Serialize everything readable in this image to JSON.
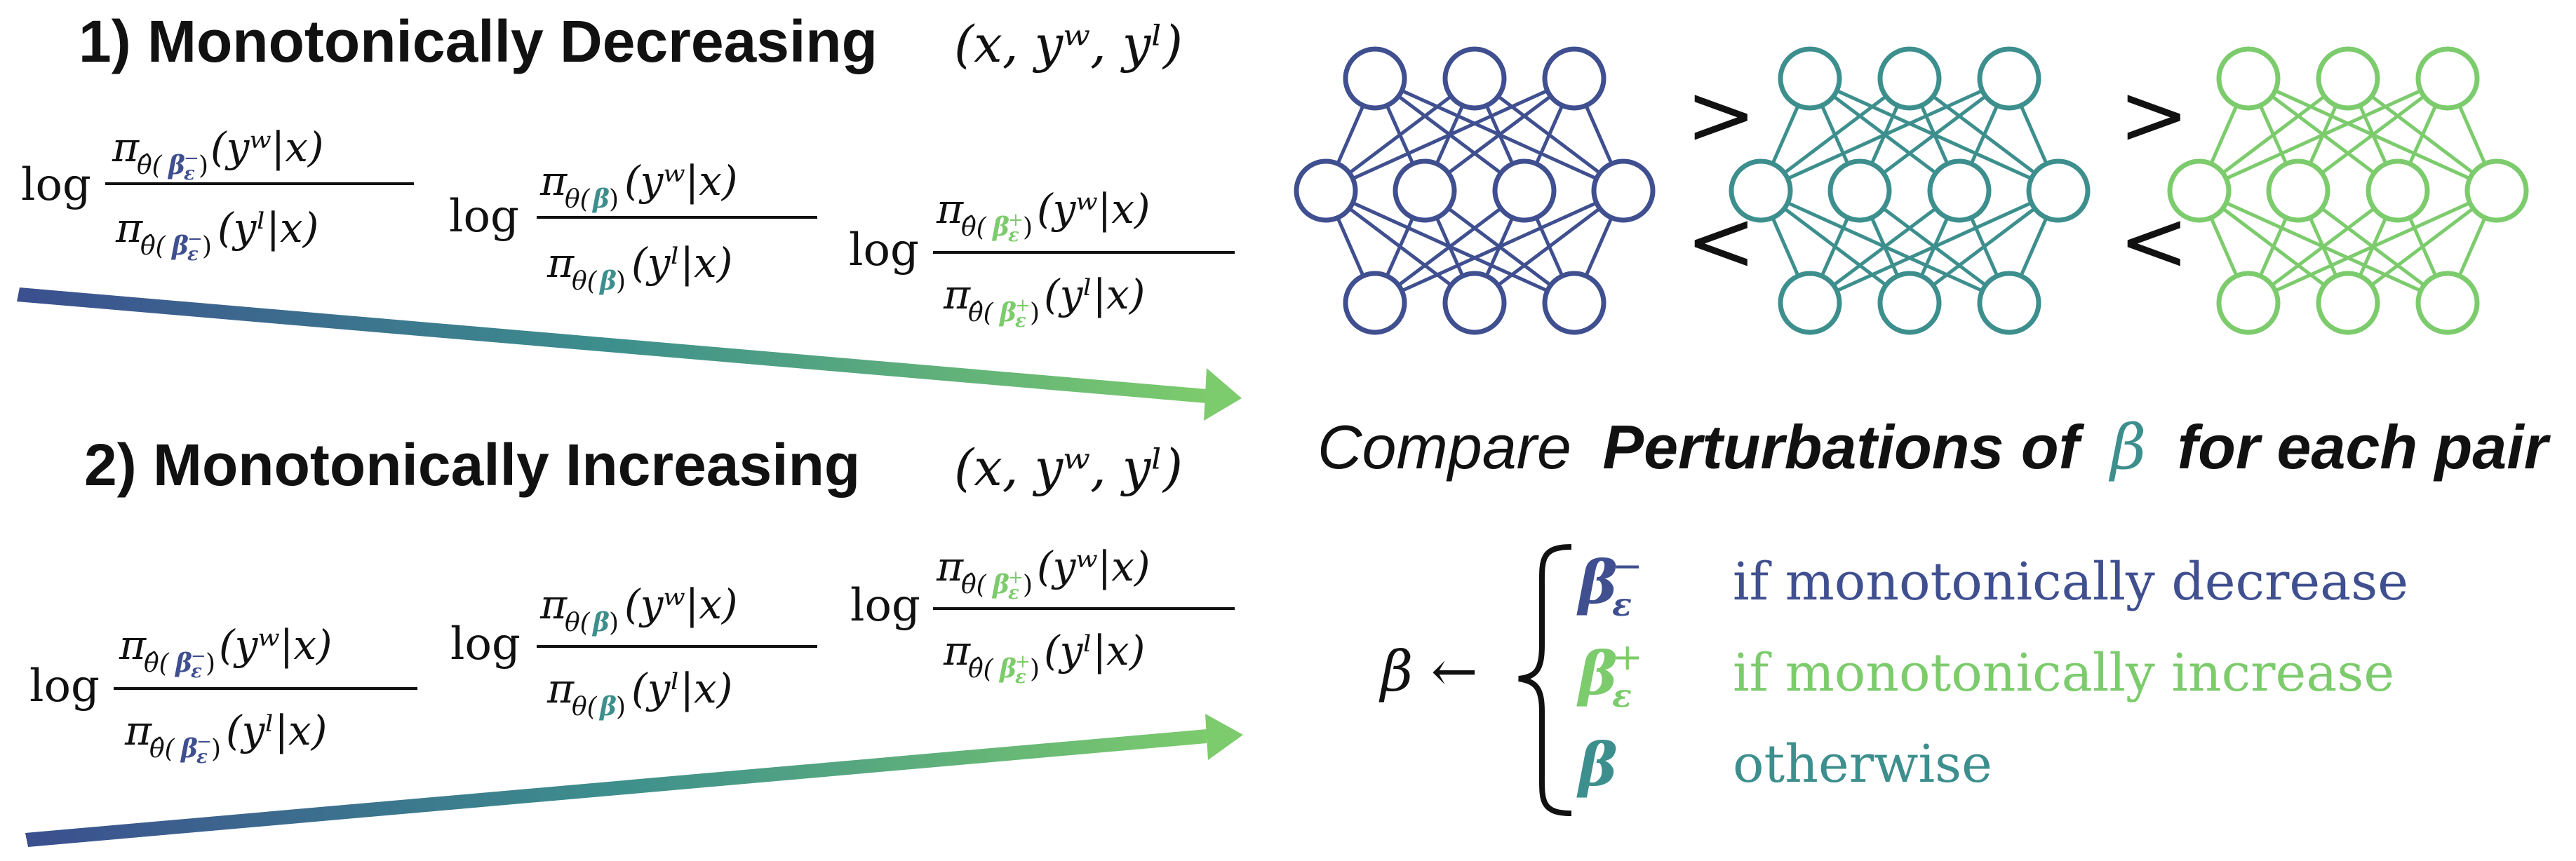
{
  "colors": {
    "dark": "#3f4f8f",
    "mid": "#3d8f8d",
    "light": "#7ccb6c",
    "ink": "#111111"
  },
  "section1": {
    "title": "1) Monotonically Decreasing",
    "tuple": "(x, yʷ, yˡ)",
    "expressions": [
      {
        "log": "log",
        "num_pi": "π",
        "num_sub": "θ̂(β",
        "num_sup": "−",
        "num_sub_end": ")",
        "num_arg": "(yʷ|x)",
        "den_pi": "π",
        "den_sub": "θ̂(β",
        "den_sup": "−",
        "den_sub_end": ")",
        "den_arg": "(yˡ|x)",
        "tone": "dark"
      },
      {
        "log": "log",
        "num_pi": "π",
        "num_sub": "θ(β)",
        "num_arg": "(yʷ|x)",
        "den_pi": "π",
        "den_sub": "θ(β)",
        "den_arg": "(yˡ|x)",
        "tone": "mid"
      },
      {
        "log": "log",
        "num_pi": "π",
        "num_sub": "θ̂(β",
        "num_sup": "+",
        "num_sub_end": ")",
        "num_arg": "(yʷ|x)",
        "den_pi": "π",
        "den_sub": "θ̂(β",
        "den_sup": "+",
        "den_sub_end": ")",
        "den_arg": "(yˡ|x)",
        "tone": "light"
      }
    ]
  },
  "section2": {
    "title": "2) Monotonically Increasing",
    "tuple": "(x, yʷ, yˡ)"
  },
  "networks": {
    "comparison_top": ">",
    "comparison_bottom": "<",
    "order": [
      "dark",
      "mid",
      "light"
    ]
  },
  "compare": {
    "lead": "Compare",
    "bold": "Perturbations of",
    "symbol": "β",
    "tail": "for each pair"
  },
  "rule": {
    "lhs": "β ←",
    "cases": [
      {
        "sym": "β",
        "sub": "ε",
        "sup": "−",
        "text": "if monotonically decrease",
        "tone": "dark"
      },
      {
        "sym": "β",
        "sub": "ε",
        "sup": "+",
        "text": "if monotonically increase",
        "tone": "light"
      },
      {
        "sym": "β",
        "sub": "",
        "sup": "",
        "text": "otherwise",
        "tone": "mid"
      }
    ]
  }
}
